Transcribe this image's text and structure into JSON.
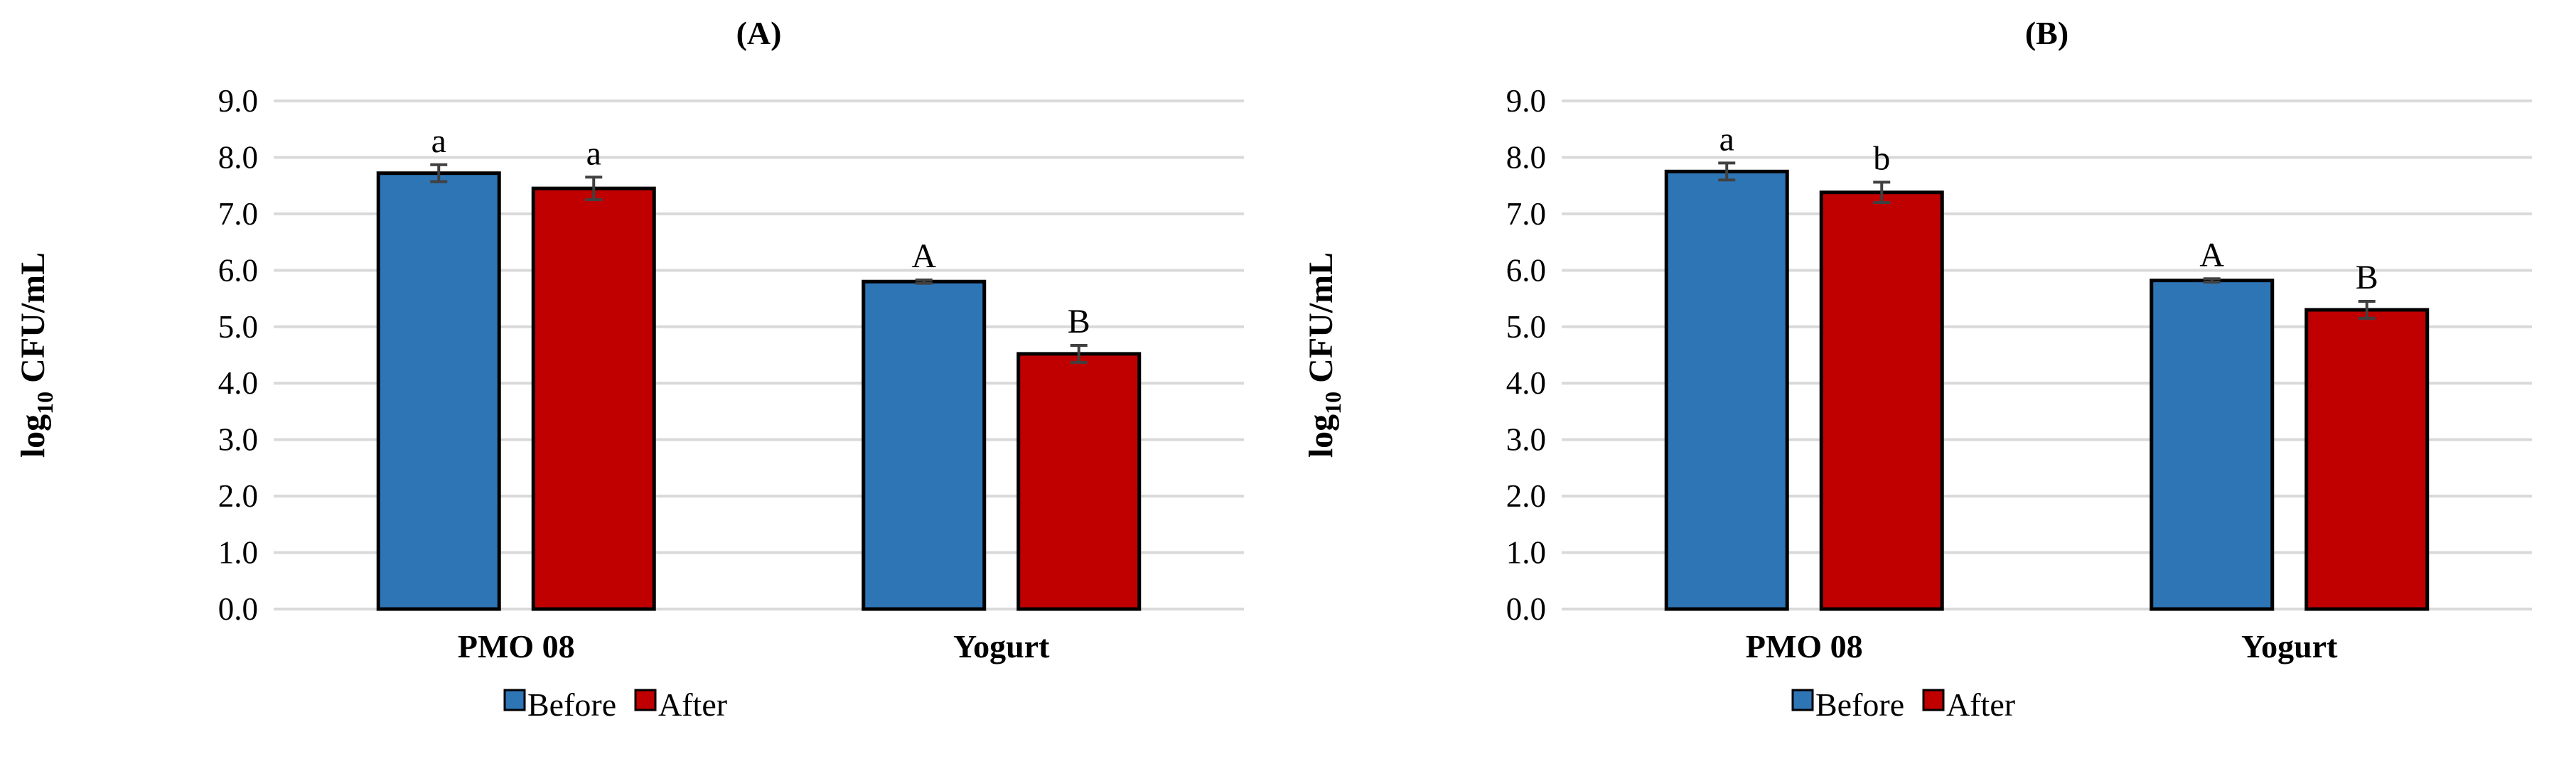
{
  "chart_data": [
    {
      "type": "bar",
      "title": "(A)",
      "ylabel_main": "log",
      "ylabel_sub": "10",
      "ylabel_rest": " CFU/mL",
      "ylim": [
        0,
        9
      ],
      "yticks": [
        "0.0",
        "1.0",
        "2.0",
        "3.0",
        "4.0",
        "5.0",
        "6.0",
        "7.0",
        "8.0",
        "9.0"
      ],
      "grid": true,
      "legend_position": "bottom",
      "categories": [
        "PMO 08",
        "Yogurt"
      ],
      "series": [
        {
          "name": "Before",
          "color": "#2e75b6",
          "values": [
            7.72,
            5.8
          ],
          "errors": [
            0.15,
            0.03
          ],
          "labels": [
            "a",
            "A"
          ]
        },
        {
          "name": "After",
          "color": "#c00000",
          "values": [
            7.45,
            4.52
          ],
          "errors": [
            0.2,
            0.15
          ],
          "labels": [
            "a",
            "B"
          ]
        }
      ]
    },
    {
      "type": "bar",
      "title": "(B)",
      "ylabel_main": "log",
      "ylabel_sub": "10",
      "ylabel_rest": " CFU/mL",
      "ylim": [
        0,
        9
      ],
      "yticks": [
        "0.0",
        "1.0",
        "2.0",
        "3.0",
        "4.0",
        "5.0",
        "6.0",
        "7.0",
        "8.0",
        "9.0"
      ],
      "grid": true,
      "legend_position": "bottom",
      "categories": [
        "PMO 08",
        "Yogurt"
      ],
      "series": [
        {
          "name": "Before",
          "color": "#2e75b6",
          "values": [
            7.75,
            5.82
          ],
          "errors": [
            0.15,
            0.03
          ],
          "labels": [
            "a",
            "A"
          ]
        },
        {
          "name": "After",
          "color": "#c00000",
          "values": [
            7.38,
            5.3
          ],
          "errors": [
            0.18,
            0.15
          ],
          "labels": [
            "b",
            "B"
          ]
        }
      ]
    }
  ]
}
